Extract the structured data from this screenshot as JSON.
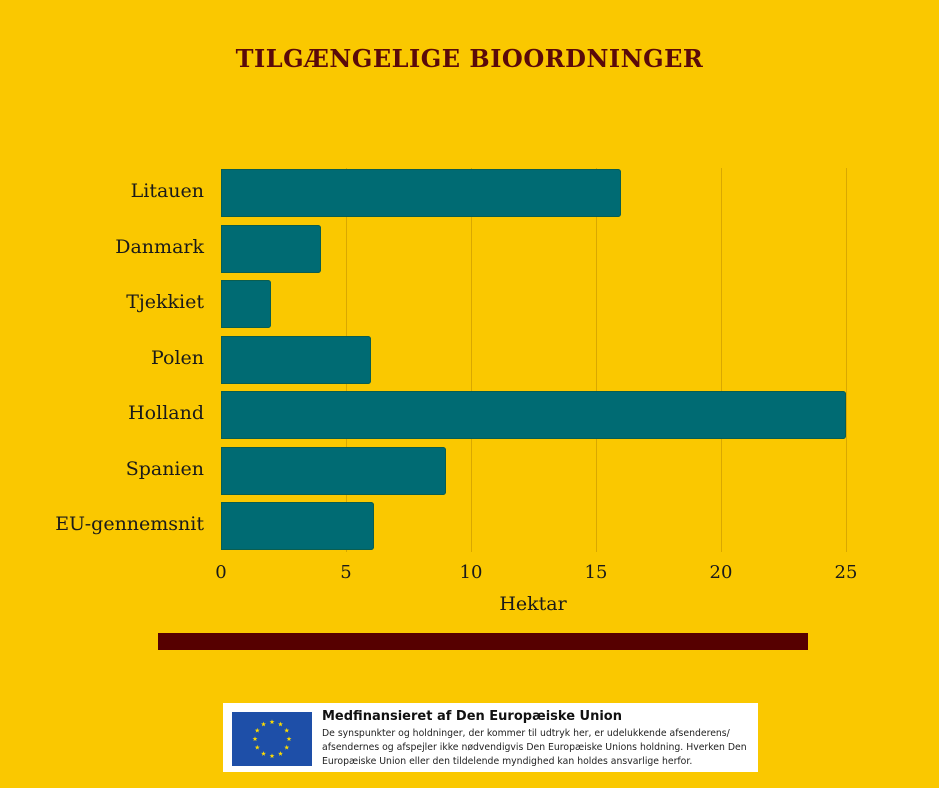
{
  "title": "TILGÆNGELIGE BIOORDNINGER",
  "chart_data": {
    "type": "bar",
    "orientation": "horizontal",
    "title": "TILGÆNGELIGE BIOORDNINGER",
    "categories": [
      "Litauen",
      "Danmark",
      "Tjekkiet",
      "Polen",
      "Holland",
      "Spanien",
      "EU-gennemsnit"
    ],
    "values": [
      16,
      4,
      2,
      6,
      25,
      9,
      6.1
    ],
    "xlabel": "Hektar",
    "ylabel": "",
    "xlim": [
      0,
      25
    ],
    "xticks": [
      "0",
      "5",
      "10",
      "15",
      "20",
      "25"
    ],
    "grid": "vertical",
    "legend": "none",
    "bar_color": "#006B73"
  },
  "colors": {
    "background": "#FAC800",
    "title": "#5A0A0A",
    "bar": "#006B73",
    "rule": "#560000",
    "eu_flag": "#1E4FA8",
    "eu_star": "#FFDD00"
  },
  "footer": {
    "eu_title": "Medfinansieret af Den Europæiske Union",
    "eu_disclaimer": "De synspunkter og holdninger, der kommer til udtryk her, er udelukkende afsenderens/ afsendernes og afspejler ikke nødvendigvis Den Europæiske Unions holdning. Hverken Den Europæiske Union eller den tildelende myndighed kan holdes ansvarlige herfor."
  }
}
